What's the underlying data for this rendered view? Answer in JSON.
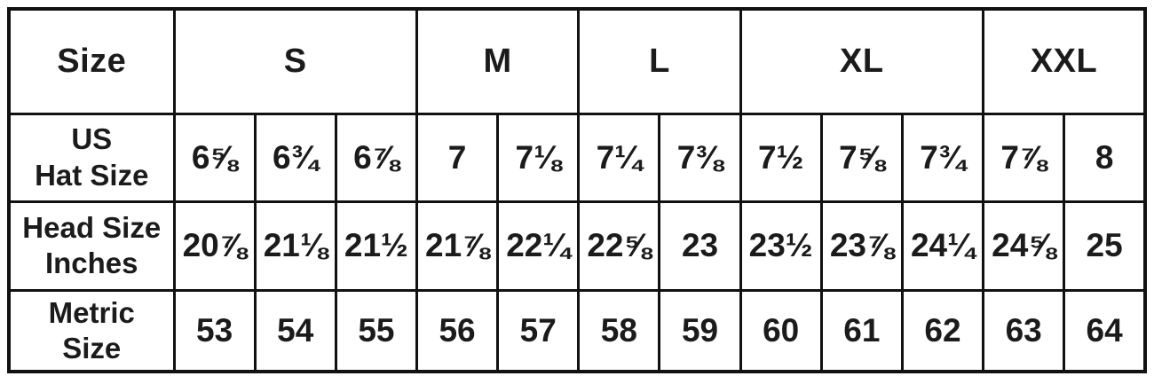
{
  "chart_data": {
    "type": "table",
    "corner_label": "Size",
    "size_groups": [
      {
        "label": "S",
        "span": 3
      },
      {
        "label": "M",
        "span": 2
      },
      {
        "label": "L",
        "span": 2
      },
      {
        "label": "XL",
        "span": 3
      },
      {
        "label": "XXL",
        "span": 2
      }
    ],
    "rows": [
      {
        "label": "US\nHat Size",
        "values": [
          "6⅝",
          "6¾",
          "6⅞",
          "7",
          "7⅛",
          "7¼",
          "7⅜",
          "7½",
          "7⅝",
          "7¾",
          "7⅞",
          "8"
        ]
      },
      {
        "label": "Head Size\nInches",
        "values": [
          "20⅞",
          "21⅛",
          "21½",
          "21⅞",
          "22¼",
          "22⅝",
          "23",
          "23½",
          "23⅞",
          "24¼",
          "24⅝",
          "25"
        ]
      },
      {
        "label": "Metric\nSize",
        "values": [
          "53",
          "54",
          "55",
          "56",
          "57",
          "58",
          "59",
          "60",
          "61",
          "62",
          "63",
          "64"
        ]
      }
    ],
    "colors": {
      "border": "#111111",
      "text": "#1b1b1b",
      "background": "#ffffff"
    }
  }
}
